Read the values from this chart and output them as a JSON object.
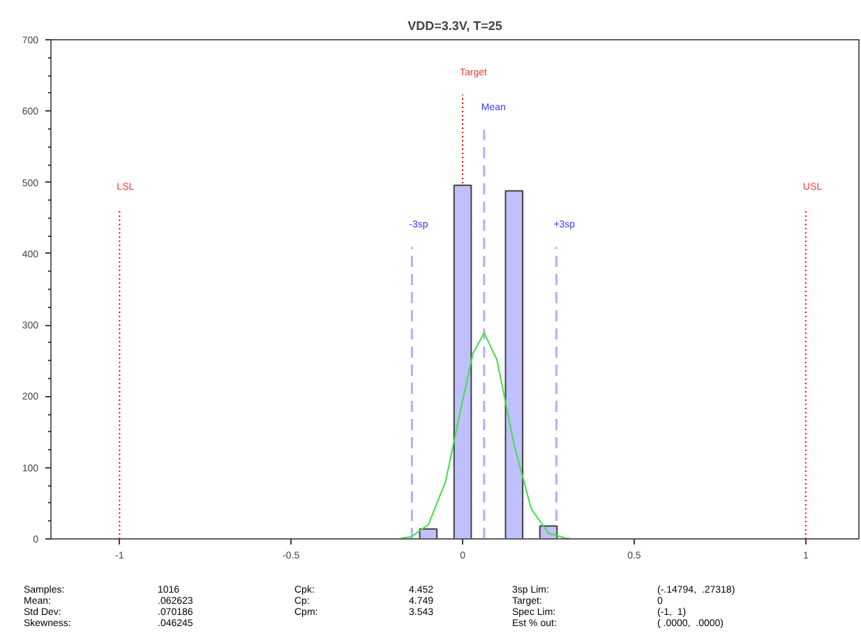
{
  "chart_data": {
    "type": "histogram",
    "title": "VDD=3.3V, T=25",
    "series": [
      {
        "bins": [
          -0.125,
          -0.075,
          -0.025,
          0.025,
          0.075,
          0.125,
          0.175,
          0.225,
          0.275
        ],
        "values": [
          14,
          0,
          496,
          0,
          0,
          488,
          0,
          18
        ],
        "color": "#c0c0ff"
      },
      {
        "type": "line",
        "x": [
          -0.18,
          -0.15,
          -0.1,
          -0.05,
          0,
          0.03,
          0.0626,
          0.1,
          0.15,
          0.2,
          0.25,
          0.3,
          0.31
        ],
        "values": [
          1,
          3,
          20,
          80,
          194,
          260,
          289,
          251,
          132,
          42,
          8,
          1,
          1
        ],
        "color": "#40e040"
      }
    ],
    "xlim": [
      -1.2,
      1.155
    ],
    "xticks": [
      -1,
      -0.5,
      0,
      0.5,
      1
    ],
    "ylim": [
      0,
      700
    ],
    "yticks": [
      0,
      100,
      200,
      300,
      400,
      500,
      600,
      700
    ],
    "grid": false,
    "ref_lines": [
      {
        "axis": "x",
        "value": -1,
        "label": "LSL",
        "color": "#ff0000",
        "line_style": "dotted"
      },
      {
        "axis": "x",
        "value": 1,
        "label": "USL",
        "color": "#ff0000",
        "line_style": "dotted"
      },
      {
        "axis": "x",
        "value": 0,
        "label": "Target",
        "color": "#ff0000",
        "line_style": "dotted"
      },
      {
        "axis": "x",
        "value": 0.062623,
        "label": "Mean",
        "color": "#6060ff",
        "line_style": "dashed"
      },
      {
        "axis": "x",
        "value": -0.14794,
        "label": "-3sp",
        "color": "#6060ff",
        "line_style": "dashed"
      },
      {
        "axis": "x",
        "value": 0.27318,
        "label": "+3sp",
        "color": "#6060ff",
        "line_style": "dashed"
      }
    ],
    "annotations": [
      "Samples:",
      "1016",
      "Mean:",
      ".062623",
      "Std Dev:",
      ".070186",
      "Skewness:",
      ".046245",
      "Cpk:",
      "4.452",
      "Cp:",
      "4.749",
      "Cpm:",
      "3.543",
      "3sp Lim:",
      "(-.14794,  .27318)",
      "Target:",
      "0",
      "Spec Lim:",
      "(-1,  1)",
      "Est % out:",
      "( .0000,  .0000)"
    ]
  }
}
